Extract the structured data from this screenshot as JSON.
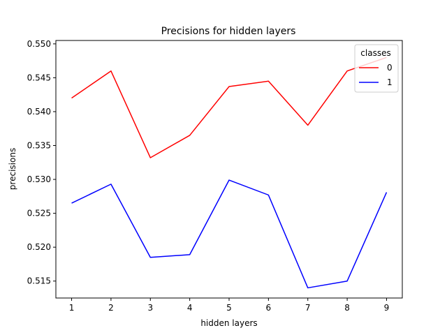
{
  "chart_data": {
    "type": "line",
    "title": "Precisions for hidden layers",
    "xlabel": "hidden layers",
    "ylabel": "precisions",
    "x": [
      1,
      2,
      3,
      4,
      5,
      6,
      7,
      8,
      9
    ],
    "xticks": [
      "1",
      "2",
      "3",
      "4",
      "5",
      "6",
      "7",
      "8",
      "9"
    ],
    "yticks": [
      "0.515",
      "0.520",
      "0.525",
      "0.530",
      "0.535",
      "0.540",
      "0.545",
      "0.550"
    ],
    "ylim": [
      0.5125,
      0.5505
    ],
    "xlim": [
      0.6,
      9.4
    ],
    "grid": false,
    "legend": {
      "title": "classes",
      "placement": "top-right"
    },
    "series": [
      {
        "name": "0",
        "color": "#ff0000",
        "values": [
          0.542,
          0.546,
          0.5332,
          0.5365,
          0.5437,
          0.5445,
          0.538,
          0.546,
          0.548
        ]
      },
      {
        "name": "1",
        "color": "#0000ff",
        "values": [
          0.5265,
          0.5293,
          0.5185,
          0.5189,
          0.5299,
          0.5277,
          0.514,
          0.515,
          0.5281
        ]
      }
    ]
  }
}
